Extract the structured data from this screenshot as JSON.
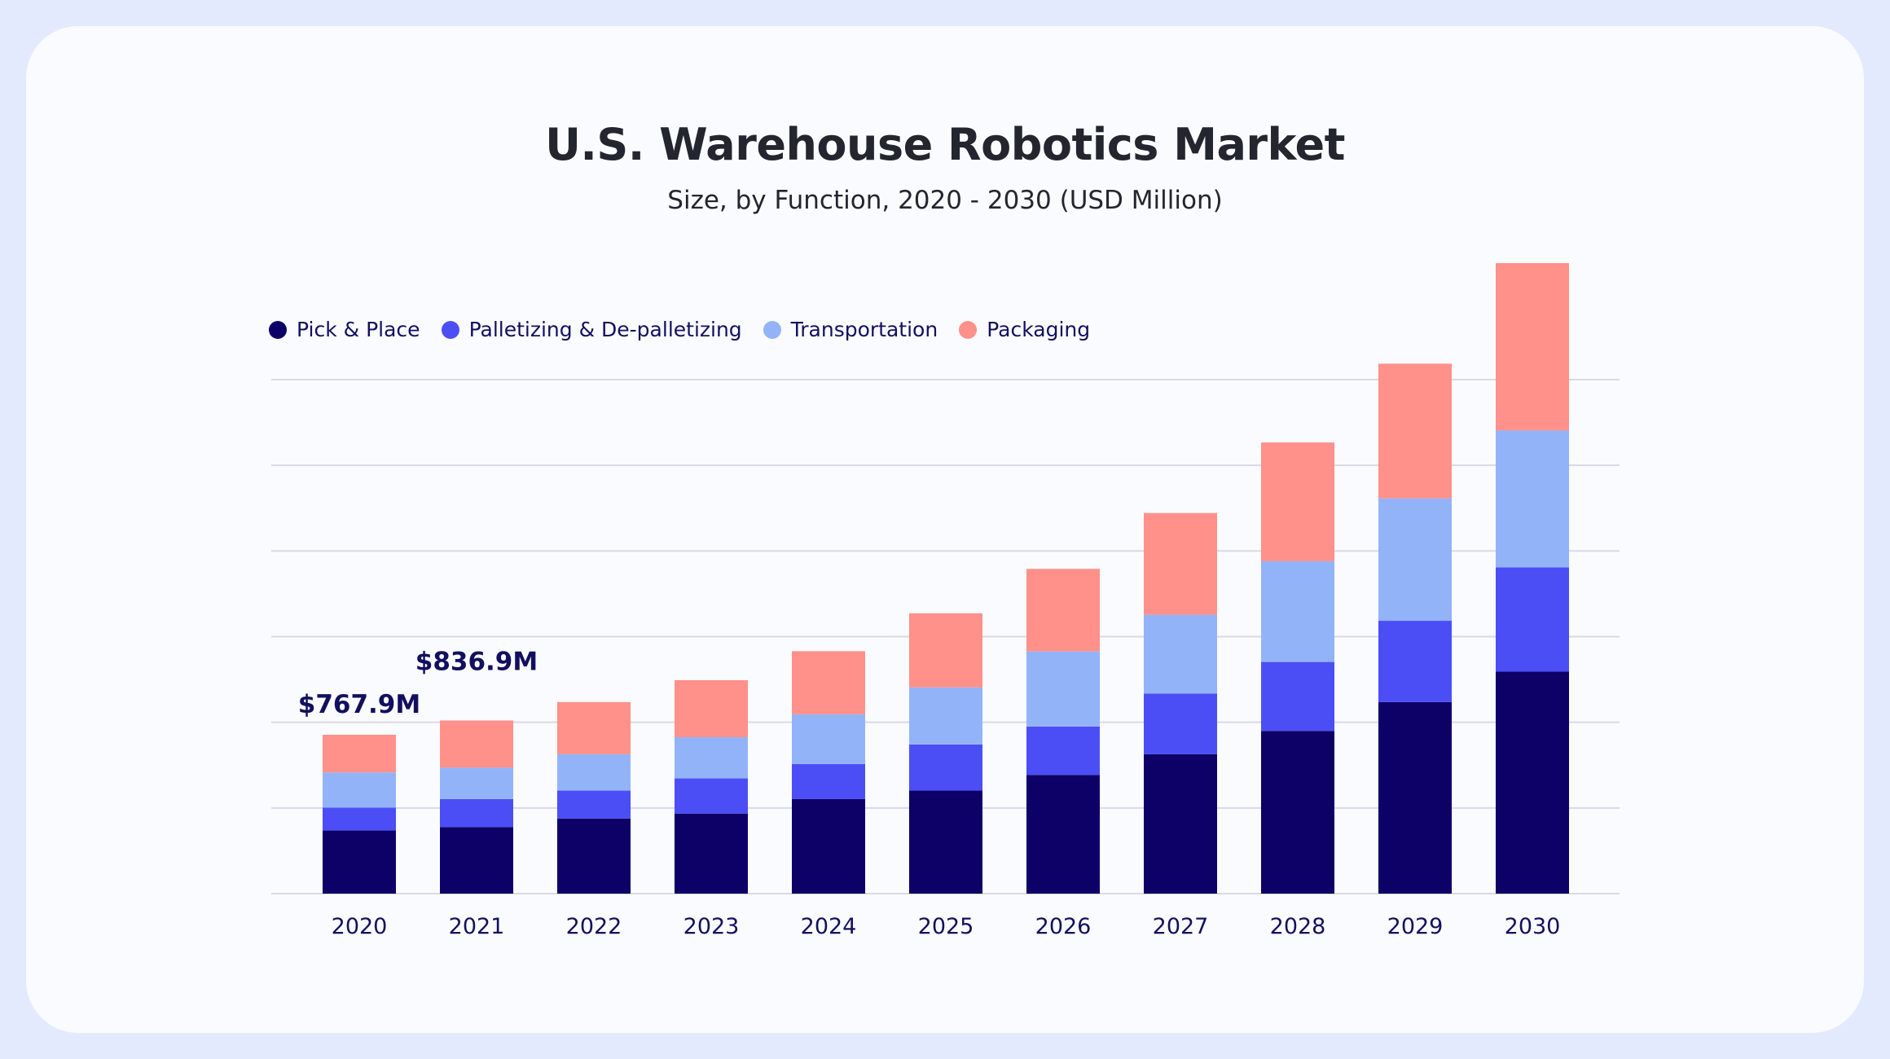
{
  "chart_data": {
    "type": "bar",
    "stacked": true,
    "title": "U.S. Warehouse Robotics Market",
    "subtitle": "Size, by Function, 2020 - 2030 (USD Million)",
    "categories": [
      "2020",
      "2021",
      "2022",
      "2023",
      "2024",
      "2025",
      "2026",
      "2027",
      "2028",
      "2029",
      "2030"
    ],
    "series": [
      {
        "name": "Pick & Place",
        "color": "#0d0066",
        "values": [
          305,
          322,
          363,
          387,
          457,
          498,
          574,
          674,
          786,
          926,
          1073
        ]
      },
      {
        "name": "Palletizing & De-palletizing",
        "color": "#4b4ef5",
        "values": [
          111,
          135,
          135,
          170,
          170,
          223,
          234,
          293,
          334,
          393,
          504
        ]
      },
      {
        "name": "Transportation",
        "color": "#93b3f8",
        "values": [
          170,
          152,
          176,
          199,
          240,
          276,
          363,
          381,
          487,
          592,
          662
        ]
      },
      {
        "name": "Packaging",
        "color": "#ff908a",
        "values": [
          182,
          228,
          252,
          276,
          305,
          358,
          399,
          492,
          574,
          651,
          809
        ]
      }
    ],
    "annotations": [
      {
        "category": "2020",
        "text": "$767.9M"
      },
      {
        "category": "2021",
        "text": "$836.9M"
      }
    ],
    "ylim": [
      0,
      3060
    ],
    "grid": true,
    "y_axis_labels": false,
    "legend_position": "top-left"
  }
}
